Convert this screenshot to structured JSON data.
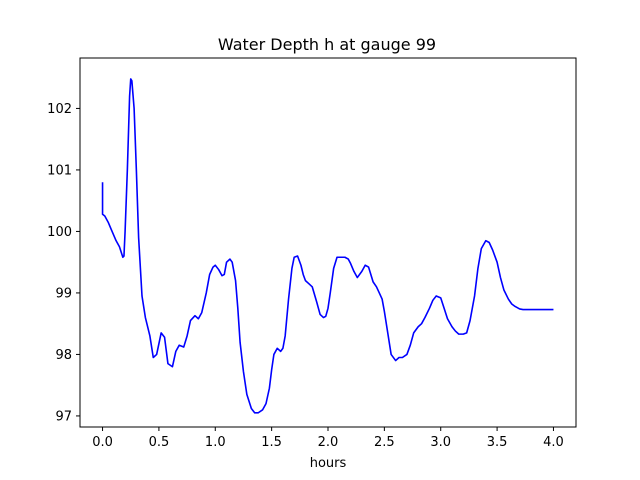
{
  "chart_data": {
    "type": "line",
    "title": "Water Depth h at gauge 99",
    "xlabel": "hours",
    "ylabel": "",
    "xlim": [
      -0.2,
      4.2
    ],
    "ylim": [
      96.82,
      102.82
    ],
    "xticks": [
      0.0,
      0.5,
      1.0,
      1.5,
      2.0,
      2.5,
      3.0,
      3.5,
      4.0
    ],
    "xtick_labels": [
      "0.0",
      "0.5",
      "1.0",
      "1.5",
      "2.0",
      "2.5",
      "3.0",
      "3.5",
      "4.0"
    ],
    "yticks": [
      97,
      98,
      99,
      100,
      101,
      102
    ],
    "ytick_labels": [
      "97",
      "98",
      "99",
      "100",
      "101",
      "102"
    ],
    "grid": false,
    "legend": "none",
    "series": [
      {
        "color": "#0000ff",
        "x": [
          0.0,
          0.0,
          0.02,
          0.05,
          0.08,
          0.12,
          0.15,
          0.18,
          0.19,
          0.2,
          0.22,
          0.24,
          0.25,
          0.26,
          0.28,
          0.3,
          0.32,
          0.35,
          0.38,
          0.42,
          0.45,
          0.48,
          0.52,
          0.55,
          0.58,
          0.62,
          0.65,
          0.68,
          0.72,
          0.75,
          0.78,
          0.82,
          0.85,
          0.88,
          0.92,
          0.95,
          0.98,
          1.0,
          1.03,
          1.06,
          1.08,
          1.1,
          1.13,
          1.15,
          1.18,
          1.2,
          1.22,
          1.25,
          1.28,
          1.32,
          1.35,
          1.38,
          1.42,
          1.45,
          1.48,
          1.5,
          1.52,
          1.55,
          1.58,
          1.6,
          1.62,
          1.65,
          1.68,
          1.7,
          1.73,
          1.76,
          1.78,
          1.8,
          1.83,
          1.86,
          1.9,
          1.93,
          1.96,
          1.98,
          2.0,
          2.02,
          2.05,
          2.08,
          2.12,
          2.15,
          2.18,
          2.2,
          2.23,
          2.26,
          2.3,
          2.33,
          2.36,
          2.38,
          2.4,
          2.43,
          2.45,
          2.48,
          2.5,
          2.53,
          2.56,
          2.6,
          2.63,
          2.66,
          2.7,
          2.73,
          2.76,
          2.8,
          2.83,
          2.86,
          2.9,
          2.93,
          2.96,
          3.0,
          3.03,
          3.06,
          3.1,
          3.13,
          3.16,
          3.2,
          3.23,
          3.26,
          3.3,
          3.33,
          3.36,
          3.4,
          3.43,
          3.46,
          3.5,
          3.53,
          3.56,
          3.6,
          3.63,
          3.66,
          3.68,
          3.7,
          3.73,
          3.76,
          3.8,
          3.83,
          3.86,
          3.9,
          3.93,
          3.96,
          4.0
        ],
        "y": [
          100.8,
          100.28,
          100.25,
          100.15,
          100.02,
          99.85,
          99.75,
          99.58,
          99.6,
          100.0,
          101.0,
          102.2,
          102.48,
          102.45,
          102.0,
          101.0,
          99.9,
          98.95,
          98.6,
          98.3,
          97.95,
          98.0,
          98.35,
          98.28,
          97.85,
          97.8,
          98.05,
          98.15,
          98.12,
          98.3,
          98.55,
          98.63,
          98.58,
          98.68,
          99.0,
          99.3,
          99.42,
          99.45,
          99.38,
          99.28,
          99.3,
          99.5,
          99.55,
          99.5,
          99.2,
          98.75,
          98.2,
          97.72,
          97.35,
          97.12,
          97.05,
          97.05,
          97.1,
          97.2,
          97.45,
          97.75,
          98.0,
          98.1,
          98.05,
          98.1,
          98.3,
          98.9,
          99.4,
          99.58,
          99.6,
          99.45,
          99.3,
          99.2,
          99.15,
          99.1,
          98.85,
          98.65,
          98.6,
          98.62,
          98.75,
          99.0,
          99.4,
          99.58,
          99.58,
          99.58,
          99.55,
          99.48,
          99.35,
          99.25,
          99.35,
          99.45,
          99.42,
          99.3,
          99.18,
          99.1,
          99.02,
          98.9,
          98.7,
          98.35,
          98.0,
          97.9,
          97.95,
          97.95,
          98.0,
          98.15,
          98.35,
          98.45,
          98.5,
          98.6,
          98.75,
          98.88,
          98.95,
          98.92,
          98.75,
          98.58,
          98.45,
          98.38,
          98.33,
          98.33,
          98.35,
          98.55,
          98.95,
          99.4,
          99.72,
          99.85,
          99.82,
          99.7,
          99.5,
          99.25,
          99.05,
          98.9,
          98.82,
          98.78,
          98.76,
          98.74,
          98.73,
          98.73,
          98.73,
          98.73,
          98.73,
          98.73,
          98.73,
          98.73,
          98.73
        ]
      }
    ]
  }
}
